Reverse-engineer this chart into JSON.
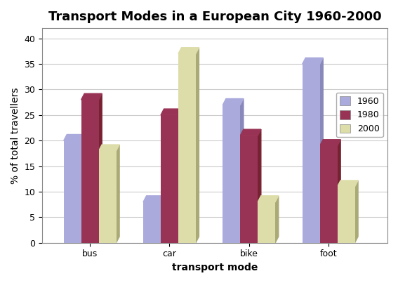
{
  "title": "Transport Modes in a European City 1960-2000",
  "xlabel": "transport mode",
  "ylabel": "% of total travellers",
  "categories": [
    "bus",
    "car",
    "bike",
    "foot"
  ],
  "years": [
    "1960",
    "1980",
    "2000"
  ],
  "values": {
    "1960": [
      20,
      8,
      27,
      35
    ],
    "1980": [
      28,
      25,
      21,
      19
    ],
    "2000": [
      18,
      37,
      8,
      11
    ]
  },
  "colors": {
    "1960": "#AAAADD",
    "1980": "#993355",
    "2000": "#DDDDAA"
  },
  "shadow_colors": {
    "1960": "#8888BB",
    "1980": "#772233",
    "2000": "#AAAA77"
  },
  "ylim": [
    0,
    42
  ],
  "yticks": [
    0,
    5,
    10,
    15,
    20,
    25,
    30,
    35,
    40
  ],
  "bar_width": 0.22,
  "bg_color": "#FFFFFF",
  "plot_bg_color": "#FFFFFF",
  "grid_color": "#CCCCCC",
  "floor_color": "#AAAAAA",
  "title_fontsize": 13,
  "axis_label_fontsize": 10,
  "tick_fontsize": 9,
  "legend_fontsize": 9
}
